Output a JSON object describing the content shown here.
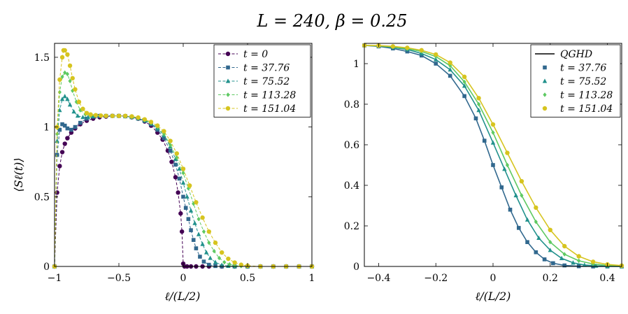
{
  "figure": {
    "title": "L = 240,  β = 0.25"
  },
  "chart_data": [
    {
      "type": "line",
      "xlabel": "ℓ/(L/2)",
      "ylabel": "⟨Sℓ(t)⟩",
      "xlim": [
        -1,
        1
      ],
      "ylim": [
        0,
        1.6
      ],
      "xticks": [
        -1,
        -0.5,
        0,
        0.5,
        1
      ],
      "xtick_labels": [
        "−1",
        "−0.5",
        "0",
        "0.5",
        "1"
      ],
      "yticks": [
        0,
        0.5,
        1,
        1.5
      ],
      "ytick_labels": [
        "0",
        "0.5",
        "1",
        "1.5"
      ],
      "legend_position": "top-right",
      "series": [
        {
          "name": "t = 0",
          "color": "#440154",
          "marker": "circle",
          "line": "dashed",
          "x": [
            -1.0,
            -0.98,
            -0.96,
            -0.94,
            -0.92,
            -0.9,
            -0.87,
            -0.84,
            -0.8,
            -0.75,
            -0.7,
            -0.65,
            -0.6,
            -0.55,
            -0.5,
            -0.45,
            -0.4,
            -0.35,
            -0.3,
            -0.25,
            -0.2,
            -0.16,
            -0.12,
            -0.09,
            -0.06,
            -0.04,
            -0.02,
            -0.01,
            0.0,
            0.01,
            0.03,
            0.06,
            0.1,
            0.15,
            0.2,
            0.3,
            0.4,
            0.5,
            0.6,
            0.7,
            0.8,
            0.9,
            1.0
          ],
          "y": [
            0.0,
            0.53,
            0.72,
            0.82,
            0.88,
            0.92,
            0.96,
            0.99,
            1.02,
            1.045,
            1.06,
            1.07,
            1.075,
            1.08,
            1.08,
            1.078,
            1.07,
            1.06,
            1.04,
            1.01,
            0.96,
            0.91,
            0.83,
            0.75,
            0.64,
            0.53,
            0.38,
            0.25,
            0.02,
            0.0,
            0.0,
            0.0,
            0.0,
            0.0,
            0.0,
            0.0,
            0.0,
            0.0,
            0.0,
            0.0,
            0.0,
            0.0,
            0.0
          ]
        },
        {
          "name": "t = 37.76",
          "color": "#31688e",
          "marker": "square",
          "line": "dashed",
          "x": [
            -1.0,
            -0.98,
            -0.96,
            -0.94,
            -0.92,
            -0.9,
            -0.87,
            -0.84,
            -0.8,
            -0.75,
            -0.7,
            -0.65,
            -0.6,
            -0.55,
            -0.5,
            -0.45,
            -0.4,
            -0.35,
            -0.3,
            -0.25,
            -0.2,
            -0.15,
            -0.1,
            -0.06,
            -0.03,
            0.0,
            0.02,
            0.04,
            0.06,
            0.08,
            0.1,
            0.13,
            0.16,
            0.2,
            0.25,
            0.3,
            0.4,
            0.5,
            0.6,
            0.7,
            0.8,
            0.9,
            1.0
          ],
          "y": [
            0.0,
            0.8,
            0.98,
            1.02,
            1.01,
            0.99,
            0.98,
            1.0,
            1.03,
            1.06,
            1.075,
            1.08,
            1.08,
            1.08,
            1.08,
            1.078,
            1.072,
            1.062,
            1.045,
            1.02,
            0.98,
            0.92,
            0.83,
            0.73,
            0.63,
            0.5,
            0.42,
            0.34,
            0.26,
            0.19,
            0.13,
            0.07,
            0.035,
            0.012,
            0.003,
            0.0,
            0.0,
            0.0,
            0.0,
            0.0,
            0.0,
            0.0,
            0.0
          ]
        },
        {
          "name": "t = 75.52",
          "color": "#21918c",
          "marker": "triangle",
          "line": "dashed",
          "x": [
            -1.0,
            -0.98,
            -0.96,
            -0.94,
            -0.92,
            -0.9,
            -0.88,
            -0.85,
            -0.82,
            -0.78,
            -0.74,
            -0.7,
            -0.65,
            -0.6,
            -0.55,
            -0.5,
            -0.45,
            -0.4,
            -0.35,
            -0.3,
            -0.25,
            -0.2,
            -0.15,
            -0.1,
            -0.06,
            -0.03,
            0.0,
            0.03,
            0.06,
            0.09,
            0.12,
            0.15,
            0.18,
            0.21,
            0.25,
            0.3,
            0.35,
            0.4,
            0.5,
            0.6,
            0.7,
            0.8,
            0.9,
            1.0
          ],
          "y": [
            0.0,
            0.9,
            1.12,
            1.2,
            1.22,
            1.2,
            1.16,
            1.11,
            1.08,
            1.07,
            1.07,
            1.075,
            1.08,
            1.08,
            1.08,
            1.08,
            1.076,
            1.07,
            1.06,
            1.045,
            1.025,
            0.99,
            0.94,
            0.86,
            0.77,
            0.7,
            0.6,
            0.5,
            0.4,
            0.31,
            0.23,
            0.16,
            0.1,
            0.06,
            0.03,
            0.01,
            0.003,
            0.0,
            0.0,
            0.0,
            0.0,
            0.0,
            0.0,
            0.0
          ]
        },
        {
          "name": "t = 113.28",
          "color": "#5ec962",
          "marker": "diamond",
          "line": "dashed",
          "x": [
            -1.0,
            -0.98,
            -0.96,
            -0.94,
            -0.92,
            -0.9,
            -0.88,
            -0.86,
            -0.83,
            -0.8,
            -0.76,
            -0.72,
            -0.68,
            -0.64,
            -0.6,
            -0.55,
            -0.5,
            -0.45,
            -0.4,
            -0.35,
            -0.3,
            -0.25,
            -0.2,
            -0.15,
            -0.1,
            -0.05,
            0.0,
            0.04,
            0.08,
            0.12,
            0.16,
            0.2,
            0.24,
            0.28,
            0.32,
            0.36,
            0.4,
            0.45,
            0.5,
            0.6,
            0.7,
            0.8,
            0.9,
            1.0
          ],
          "y": [
            0.0,
            0.95,
            1.25,
            1.36,
            1.39,
            1.38,
            1.33,
            1.26,
            1.18,
            1.12,
            1.09,
            1.08,
            1.08,
            1.08,
            1.08,
            1.08,
            1.08,
            1.078,
            1.073,
            1.065,
            1.05,
            1.03,
            1.0,
            0.95,
            0.87,
            0.78,
            0.67,
            0.56,
            0.45,
            0.34,
            0.25,
            0.17,
            0.11,
            0.06,
            0.03,
            0.015,
            0.006,
            0.002,
            0.0,
            0.0,
            0.0,
            0.0,
            0.0,
            0.0
          ]
        },
        {
          "name": "t = 151.04",
          "color": "#d6c41f",
          "marker": "circle",
          "line": "dashed",
          "x": [
            -1.0,
            -0.98,
            -0.96,
            -0.94,
            -0.93,
            -0.92,
            -0.9,
            -0.88,
            -0.86,
            -0.84,
            -0.81,
            -0.78,
            -0.75,
            -0.72,
            -0.68,
            -0.64,
            -0.6,
            -0.55,
            -0.5,
            -0.45,
            -0.4,
            -0.35,
            -0.3,
            -0.25,
            -0.2,
            -0.15,
            -0.1,
            -0.05,
            0.0,
            0.05,
            0.1,
            0.15,
            0.2,
            0.25,
            0.3,
            0.35,
            0.4,
            0.45,
            0.5,
            0.6,
            0.7,
            0.8,
            0.9,
            1.0
          ],
          "y": [
            0.0,
            1.0,
            1.34,
            1.5,
            1.55,
            1.55,
            1.52,
            1.44,
            1.35,
            1.27,
            1.18,
            1.13,
            1.1,
            1.09,
            1.085,
            1.082,
            1.08,
            1.08,
            1.08,
            1.08,
            1.076,
            1.068,
            1.055,
            1.036,
            1.01,
            0.97,
            0.9,
            0.81,
            0.7,
            0.58,
            0.46,
            0.35,
            0.25,
            0.17,
            0.1,
            0.055,
            0.028,
            0.012,
            0.005,
            0.0,
            0.0,
            0.0,
            0.0,
            0.0
          ]
        }
      ]
    },
    {
      "type": "line",
      "xlabel": "ℓ/(L/2)",
      "ylabel": "",
      "xlim": [
        -0.45,
        0.45
      ],
      "ylim": [
        0,
        1.1
      ],
      "xticks": [
        -0.4,
        -0.2,
        0,
        0.2,
        0.4
      ],
      "xtick_labels": [
        "−0.4",
        "−0.2",
        "0",
        "0.2",
        "0.4"
      ],
      "yticks": [
        0,
        0.2,
        0.4,
        0.6,
        0.8,
        1
      ],
      "ytick_labels": [
        "0",
        "0.2",
        "0.4",
        "0.6",
        "0.8",
        "1"
      ],
      "legend_position": "top-right",
      "legend_title_entry": "QGHD",
      "series": [
        {
          "name": "t = 37.76",
          "color": "#31688e",
          "marker": "square",
          "x": [
            -0.45,
            -0.4,
            -0.35,
            -0.3,
            -0.25,
            -0.2,
            -0.15,
            -0.1,
            -0.06,
            -0.03,
            0.0,
            0.03,
            0.06,
            0.09,
            0.12,
            0.15,
            0.18,
            0.21,
            0.25,
            0.3,
            0.35,
            0.4,
            0.45
          ],
          "y": [
            1.09,
            1.085,
            1.075,
            1.06,
            1.04,
            1.0,
            0.94,
            0.84,
            0.73,
            0.62,
            0.5,
            0.39,
            0.28,
            0.19,
            0.12,
            0.07,
            0.035,
            0.016,
            0.005,
            0.001,
            0.0,
            0.0,
            0.0
          ],
          "qghd_y": [
            1.09,
            1.085,
            1.075,
            1.06,
            1.04,
            1.0,
            0.94,
            0.84,
            0.73,
            0.62,
            0.5,
            0.39,
            0.28,
            0.19,
            0.12,
            0.07,
            0.035,
            0.016,
            0.005,
            0.001,
            0.0,
            0.0,
            0.0
          ]
        },
        {
          "name": "t = 75.52",
          "color": "#21918c",
          "marker": "triangle",
          "x": [
            -0.45,
            -0.4,
            -0.35,
            -0.3,
            -0.25,
            -0.2,
            -0.15,
            -0.1,
            -0.05,
            0.0,
            0.04,
            0.08,
            0.12,
            0.16,
            0.2,
            0.24,
            0.28,
            0.32,
            0.36,
            0.4,
            0.45
          ],
          "y": [
            1.09,
            1.087,
            1.08,
            1.07,
            1.05,
            1.02,
            0.97,
            0.89,
            0.77,
            0.61,
            0.48,
            0.35,
            0.23,
            0.14,
            0.08,
            0.04,
            0.018,
            0.007,
            0.003,
            0.001,
            0.0
          ],
          "qghd_y": [
            1.09,
            1.087,
            1.08,
            1.07,
            1.05,
            1.02,
            0.97,
            0.89,
            0.77,
            0.61,
            0.48,
            0.35,
            0.23,
            0.14,
            0.08,
            0.04,
            0.018,
            0.007,
            0.003,
            0.001,
            0.0
          ]
        },
        {
          "name": "t = 113.28",
          "color": "#5ec962",
          "marker": "diamond",
          "x": [
            -0.45,
            -0.4,
            -0.35,
            -0.3,
            -0.25,
            -0.2,
            -0.15,
            -0.1,
            -0.05,
            0.0,
            0.05,
            0.1,
            0.15,
            0.2,
            0.25,
            0.3,
            0.35,
            0.4,
            0.45
          ],
          "y": [
            1.09,
            1.088,
            1.082,
            1.074,
            1.06,
            1.035,
            0.99,
            0.91,
            0.8,
            0.66,
            0.5,
            0.35,
            0.22,
            0.12,
            0.06,
            0.028,
            0.012,
            0.005,
            0.002
          ],
          "qghd_y": [
            1.09,
            1.088,
            1.082,
            1.074,
            1.06,
            1.035,
            0.99,
            0.91,
            0.8,
            0.66,
            0.5,
            0.35,
            0.22,
            0.12,
            0.06,
            0.028,
            0.012,
            0.005,
            0.002
          ]
        },
        {
          "name": "t = 151.04",
          "color": "#d6c41f",
          "marker": "circle",
          "x": [
            -0.45,
            -0.4,
            -0.35,
            -0.3,
            -0.25,
            -0.2,
            -0.15,
            -0.1,
            -0.05,
            0.0,
            0.05,
            0.1,
            0.15,
            0.2,
            0.25,
            0.3,
            0.35,
            0.4,
            0.45
          ],
          "y": [
            1.09,
            1.089,
            1.085,
            1.078,
            1.066,
            1.045,
            1.005,
            0.935,
            0.83,
            0.7,
            0.56,
            0.42,
            0.29,
            0.18,
            0.1,
            0.05,
            0.023,
            0.01,
            0.004
          ],
          "qghd_y": [
            1.09,
            1.089,
            1.085,
            1.078,
            1.066,
            1.045,
            1.005,
            0.935,
            0.83,
            0.7,
            0.56,
            0.42,
            0.29,
            0.18,
            0.1,
            0.05,
            0.023,
            0.01,
            0.004
          ]
        }
      ]
    }
  ]
}
